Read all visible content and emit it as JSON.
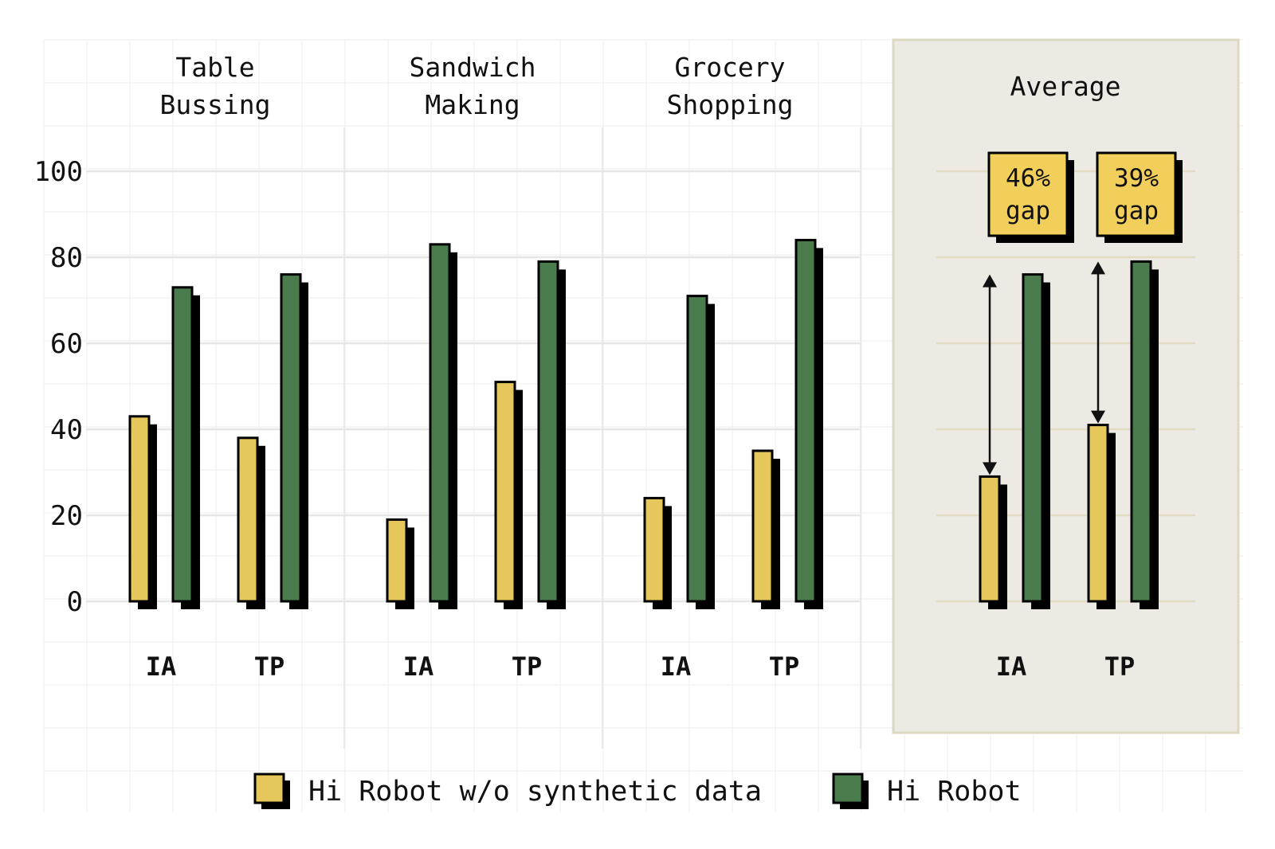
{
  "colors": {
    "series_a": "#E6C75B",
    "series_b": "#4A7C4E",
    "shadow": "#000000",
    "grid": "#ececec",
    "highlight_panel": "#ECEAE3",
    "highlight_border": "#DDD8C2",
    "gap_box": "#F2CF5B"
  },
  "chart_data": {
    "type": "bar",
    "ylim": [
      0,
      100
    ],
    "yticks": [
      "0",
      "20",
      "40",
      "60",
      "80",
      "100"
    ],
    "groups": [
      {
        "title_lines": [
          "Table",
          "Bussing"
        ],
        "categories": [
          "IA",
          "TP"
        ],
        "series_a": [
          43,
          38
        ],
        "series_b": [
          73,
          76
        ]
      },
      {
        "title_lines": [
          "Sandwich",
          "Making"
        ],
        "categories": [
          "IA",
          "TP"
        ],
        "series_a": [
          19,
          51
        ],
        "series_b": [
          83,
          79
        ]
      },
      {
        "title_lines": [
          "Grocery",
          "Shopping"
        ],
        "categories": [
          "IA",
          "TP"
        ],
        "series_a": [
          24,
          35
        ],
        "series_b": [
          71,
          84
        ]
      },
      {
        "title_lines": [
          "Average"
        ],
        "highlighted": true,
        "categories": [
          "IA",
          "TP"
        ],
        "series_a": [
          29,
          41
        ],
        "series_b": [
          76,
          79
        ],
        "gap_labels": [
          [
            "46%",
            "gap"
          ],
          [
            "39%",
            "gap"
          ]
        ]
      }
    ],
    "legend": [
      {
        "label": "Hi Robot w/o synthetic data",
        "series": "series_a"
      },
      {
        "label": "Hi Robot",
        "series": "series_b"
      }
    ]
  }
}
